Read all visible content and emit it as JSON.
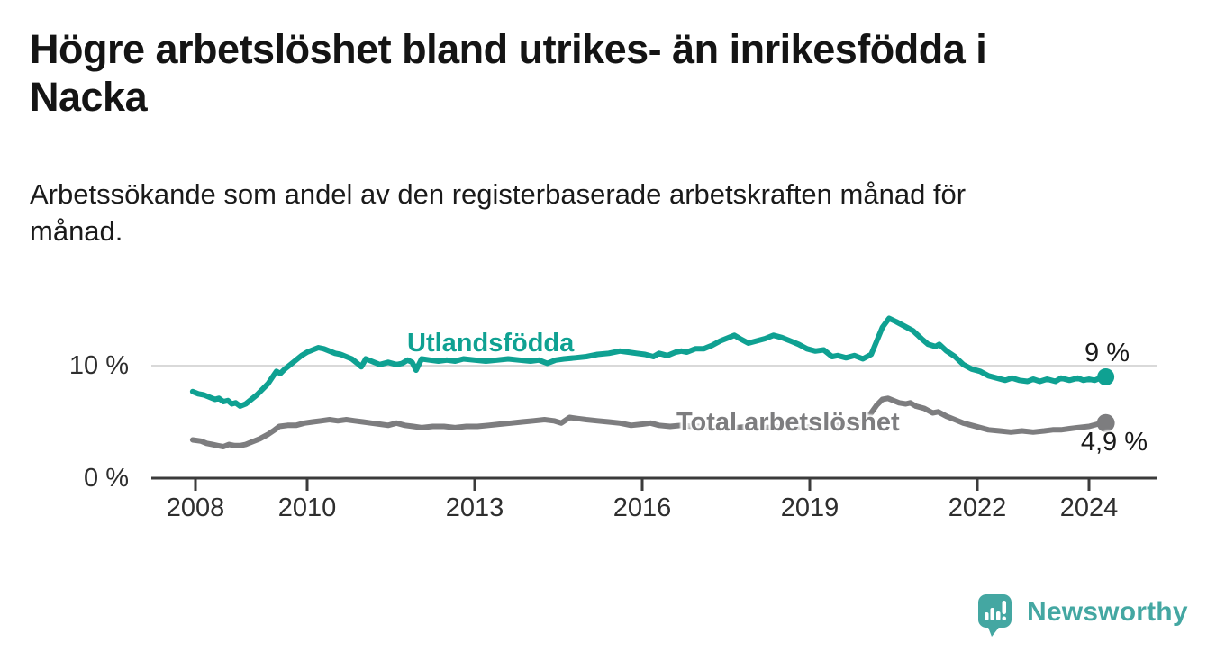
{
  "header": {
    "title": "Högre arbetslöshet bland utrikes- än inrikesfödda i\nNacka",
    "subtitle": "Arbetssökande som andel av den registerbaserade arbetskraften månad för\nmånad."
  },
  "chart_data": {
    "type": "line",
    "unit": "percent of registered labour force",
    "x_axis": {
      "ticks": [
        2008,
        2010,
        2013,
        2016,
        2019,
        2022,
        2024
      ],
      "min": 2007.2,
      "max": 2025.2
    },
    "y_axis": {
      "ticks": [
        {
          "value": 0,
          "label": "0 %"
        },
        {
          "value": 10,
          "label": "10 %"
        }
      ],
      "min": 0,
      "max": 15.8
    },
    "grid": "horizontal-10-only",
    "legend_position": "inline-labels",
    "series": [
      {
        "name": "Utlandsfödda",
        "color": "#0FA192",
        "end_label": "9 %",
        "end_value": 9.0,
        "points": [
          [
            2007.95,
            7.7
          ],
          [
            2008.05,
            7.5
          ],
          [
            2008.15,
            7.4
          ],
          [
            2008.25,
            7.2
          ],
          [
            2008.35,
            7.0
          ],
          [
            2008.42,
            7.1
          ],
          [
            2008.5,
            6.8
          ],
          [
            2008.58,
            6.9
          ],
          [
            2008.65,
            6.6
          ],
          [
            2008.72,
            6.7
          ],
          [
            2008.8,
            6.4
          ],
          [
            2008.9,
            6.6
          ],
          [
            2009.0,
            7.0
          ],
          [
            2009.1,
            7.4
          ],
          [
            2009.2,
            7.9
          ],
          [
            2009.3,
            8.4
          ],
          [
            2009.38,
            9.0
          ],
          [
            2009.45,
            9.5
          ],
          [
            2009.52,
            9.3
          ],
          [
            2009.6,
            9.7
          ],
          [
            2009.7,
            10.1
          ],
          [
            2009.8,
            10.5
          ],
          [
            2009.9,
            10.9
          ],
          [
            2010.0,
            11.2
          ],
          [
            2010.1,
            11.4
          ],
          [
            2010.2,
            11.6
          ],
          [
            2010.3,
            11.5
          ],
          [
            2010.4,
            11.3
          ],
          [
            2010.5,
            11.1
          ],
          [
            2010.6,
            11.0
          ],
          [
            2010.7,
            10.8
          ],
          [
            2010.8,
            10.6
          ],
          [
            2010.9,
            10.2
          ],
          [
            2010.97,
            9.9
          ],
          [
            2011.05,
            10.6
          ],
          [
            2011.15,
            10.4
          ],
          [
            2011.3,
            10.1
          ],
          [
            2011.45,
            10.3
          ],
          [
            2011.6,
            10.1
          ],
          [
            2011.7,
            10.2
          ],
          [
            2011.8,
            10.5
          ],
          [
            2011.88,
            10.3
          ],
          [
            2011.95,
            9.6
          ],
          [
            2012.05,
            10.6
          ],
          [
            2012.2,
            10.5
          ],
          [
            2012.35,
            10.4
          ],
          [
            2012.5,
            10.5
          ],
          [
            2012.65,
            10.4
          ],
          [
            2012.8,
            10.6
          ],
          [
            2013.0,
            10.5
          ],
          [
            2013.2,
            10.4
          ],
          [
            2013.4,
            10.5
          ],
          [
            2013.6,
            10.6
          ],
          [
            2013.8,
            10.5
          ],
          [
            2014.0,
            10.4
          ],
          [
            2014.15,
            10.5
          ],
          [
            2014.3,
            10.2
          ],
          [
            2014.45,
            10.5
          ],
          [
            2014.6,
            10.6
          ],
          [
            2014.8,
            10.7
          ],
          [
            2015.0,
            10.8
          ],
          [
            2015.2,
            11.0
          ],
          [
            2015.4,
            11.1
          ],
          [
            2015.6,
            11.3
          ],
          [
            2015.75,
            11.2
          ],
          [
            2015.9,
            11.1
          ],
          [
            2016.05,
            11.0
          ],
          [
            2016.2,
            10.8
          ],
          [
            2016.3,
            11.1
          ],
          [
            2016.45,
            10.9
          ],
          [
            2016.6,
            11.2
          ],
          [
            2016.7,
            11.3
          ],
          [
            2016.8,
            11.2
          ],
          [
            2016.95,
            11.5
          ],
          [
            2017.1,
            11.5
          ],
          [
            2017.25,
            11.8
          ],
          [
            2017.4,
            12.2
          ],
          [
            2017.55,
            12.5
          ],
          [
            2017.65,
            12.7
          ],
          [
            2017.75,
            12.4
          ],
          [
            2017.9,
            12.0
          ],
          [
            2018.05,
            12.2
          ],
          [
            2018.2,
            12.4
          ],
          [
            2018.35,
            12.7
          ],
          [
            2018.5,
            12.5
          ],
          [
            2018.65,
            12.2
          ],
          [
            2018.8,
            11.9
          ],
          [
            2018.95,
            11.5
          ],
          [
            2019.1,
            11.3
          ],
          [
            2019.25,
            11.4
          ],
          [
            2019.4,
            10.8
          ],
          [
            2019.5,
            10.9
          ],
          [
            2019.65,
            10.7
          ],
          [
            2019.8,
            10.9
          ],
          [
            2019.95,
            10.6
          ],
          [
            2020.1,
            11.0
          ],
          [
            2020.2,
            12.2
          ],
          [
            2020.3,
            13.4
          ],
          [
            2020.42,
            14.2
          ],
          [
            2020.55,
            13.9
          ],
          [
            2020.7,
            13.5
          ],
          [
            2020.85,
            13.1
          ],
          [
            2021.0,
            12.4
          ],
          [
            2021.12,
            11.9
          ],
          [
            2021.25,
            11.7
          ],
          [
            2021.32,
            11.9
          ],
          [
            2021.45,
            11.3
          ],
          [
            2021.6,
            10.8
          ],
          [
            2021.75,
            10.1
          ],
          [
            2021.9,
            9.7
          ],
          [
            2022.05,
            9.5
          ],
          [
            2022.2,
            9.1
          ],
          [
            2022.35,
            8.9
          ],
          [
            2022.5,
            8.7
          ],
          [
            2022.62,
            8.9
          ],
          [
            2022.75,
            8.7
          ],
          [
            2022.9,
            8.6
          ],
          [
            2023.0,
            8.8
          ],
          [
            2023.12,
            8.6
          ],
          [
            2023.25,
            8.8
          ],
          [
            2023.4,
            8.6
          ],
          [
            2023.5,
            8.9
          ],
          [
            2023.65,
            8.7
          ],
          [
            2023.8,
            8.9
          ],
          [
            2023.9,
            8.7
          ],
          [
            2024.0,
            8.8
          ],
          [
            2024.1,
            8.7
          ],
          [
            2024.2,
            8.9
          ],
          [
            2024.3,
            9.0
          ]
        ]
      },
      {
        "name": "Total arbetslöshet",
        "color": "#7D7D7F",
        "end_label": "4,9 %",
        "end_value": 4.9,
        "points": [
          [
            2007.95,
            3.4
          ],
          [
            2008.1,
            3.3
          ],
          [
            2008.2,
            3.1
          ],
          [
            2008.3,
            3.0
          ],
          [
            2008.4,
            2.9
          ],
          [
            2008.5,
            2.8
          ],
          [
            2008.6,
            3.0
          ],
          [
            2008.7,
            2.9
          ],
          [
            2008.8,
            2.9
          ],
          [
            2008.9,
            3.0
          ],
          [
            2009.0,
            3.2
          ],
          [
            2009.15,
            3.5
          ],
          [
            2009.3,
            3.9
          ],
          [
            2009.42,
            4.3
          ],
          [
            2009.5,
            4.6
          ],
          [
            2009.65,
            4.7
          ],
          [
            2009.8,
            4.7
          ],
          [
            2009.95,
            4.9
          ],
          [
            2010.1,
            5.0
          ],
          [
            2010.25,
            5.1
          ],
          [
            2010.4,
            5.2
          ],
          [
            2010.55,
            5.1
          ],
          [
            2010.7,
            5.2
          ],
          [
            2010.85,
            5.1
          ],
          [
            2011.0,
            5.0
          ],
          [
            2011.15,
            4.9
          ],
          [
            2011.3,
            4.8
          ],
          [
            2011.45,
            4.7
          ],
          [
            2011.6,
            4.9
          ],
          [
            2011.75,
            4.7
          ],
          [
            2011.9,
            4.6
          ],
          [
            2012.05,
            4.5
          ],
          [
            2012.25,
            4.6
          ],
          [
            2012.45,
            4.6
          ],
          [
            2012.65,
            4.5
          ],
          [
            2012.85,
            4.6
          ],
          [
            2013.05,
            4.6
          ],
          [
            2013.25,
            4.7
          ],
          [
            2013.45,
            4.8
          ],
          [
            2013.65,
            4.9
          ],
          [
            2013.85,
            5.0
          ],
          [
            2014.05,
            5.1
          ],
          [
            2014.25,
            5.2
          ],
          [
            2014.42,
            5.1
          ],
          [
            2014.55,
            4.9
          ],
          [
            2014.7,
            5.4
          ],
          [
            2014.85,
            5.3
          ],
          [
            2015.0,
            5.2
          ],
          [
            2015.2,
            5.1
          ],
          [
            2015.4,
            5.0
          ],
          [
            2015.6,
            4.9
          ],
          [
            2015.8,
            4.7
          ],
          [
            2016.0,
            4.8
          ],
          [
            2016.15,
            4.9
          ],
          [
            2016.3,
            4.7
          ],
          [
            2016.5,
            4.6
          ],
          [
            2016.7,
            4.7
          ],
          [
            2016.9,
            4.6
          ],
          [
            2017.1,
            4.6
          ],
          [
            2017.3,
            4.5
          ],
          [
            2017.5,
            4.6
          ],
          [
            2017.7,
            4.5
          ],
          [
            2017.9,
            4.6
          ],
          [
            2018.1,
            4.5
          ],
          [
            2018.3,
            4.5
          ],
          [
            2018.5,
            4.6
          ],
          [
            2018.7,
            4.5
          ],
          [
            2018.9,
            4.5
          ],
          [
            2019.1,
            4.6
          ],
          [
            2019.3,
            4.6
          ],
          [
            2019.5,
            4.7
          ],
          [
            2019.7,
            4.7
          ],
          [
            2019.85,
            4.8
          ],
          [
            2020.0,
            5.2
          ],
          [
            2020.1,
            5.8
          ],
          [
            2020.2,
            6.5
          ],
          [
            2020.3,
            7.0
          ],
          [
            2020.4,
            7.1
          ],
          [
            2020.5,
            6.9
          ],
          [
            2020.6,
            6.7
          ],
          [
            2020.72,
            6.6
          ],
          [
            2020.8,
            6.7
          ],
          [
            2020.9,
            6.4
          ],
          [
            2021.05,
            6.2
          ],
          [
            2021.2,
            5.8
          ],
          [
            2021.3,
            5.9
          ],
          [
            2021.45,
            5.5
          ],
          [
            2021.6,
            5.2
          ],
          [
            2021.75,
            4.9
          ],
          [
            2021.9,
            4.7
          ],
          [
            2022.05,
            4.5
          ],
          [
            2022.2,
            4.3
          ],
          [
            2022.4,
            4.2
          ],
          [
            2022.6,
            4.1
          ],
          [
            2022.8,
            4.2
          ],
          [
            2023.0,
            4.1
          ],
          [
            2023.2,
            4.2
          ],
          [
            2023.35,
            4.3
          ],
          [
            2023.5,
            4.3
          ],
          [
            2023.65,
            4.4
          ],
          [
            2023.8,
            4.5
          ],
          [
            2024.0,
            4.6
          ],
          [
            2024.15,
            4.8
          ],
          [
            2024.3,
            4.9
          ]
        ]
      }
    ]
  },
  "branding": {
    "logo_text": "Newsworthy",
    "logo_color": "#44A7A2",
    "logo_icon": "speech-bubble-with-bar-chart-and-exclamation"
  },
  "colors": {
    "accent_teal": "#0FA192",
    "series_gray": "#7D7D7F",
    "gridline": "#d9d9d9",
    "axis": "#3b3b3b",
    "text": "#141414"
  }
}
